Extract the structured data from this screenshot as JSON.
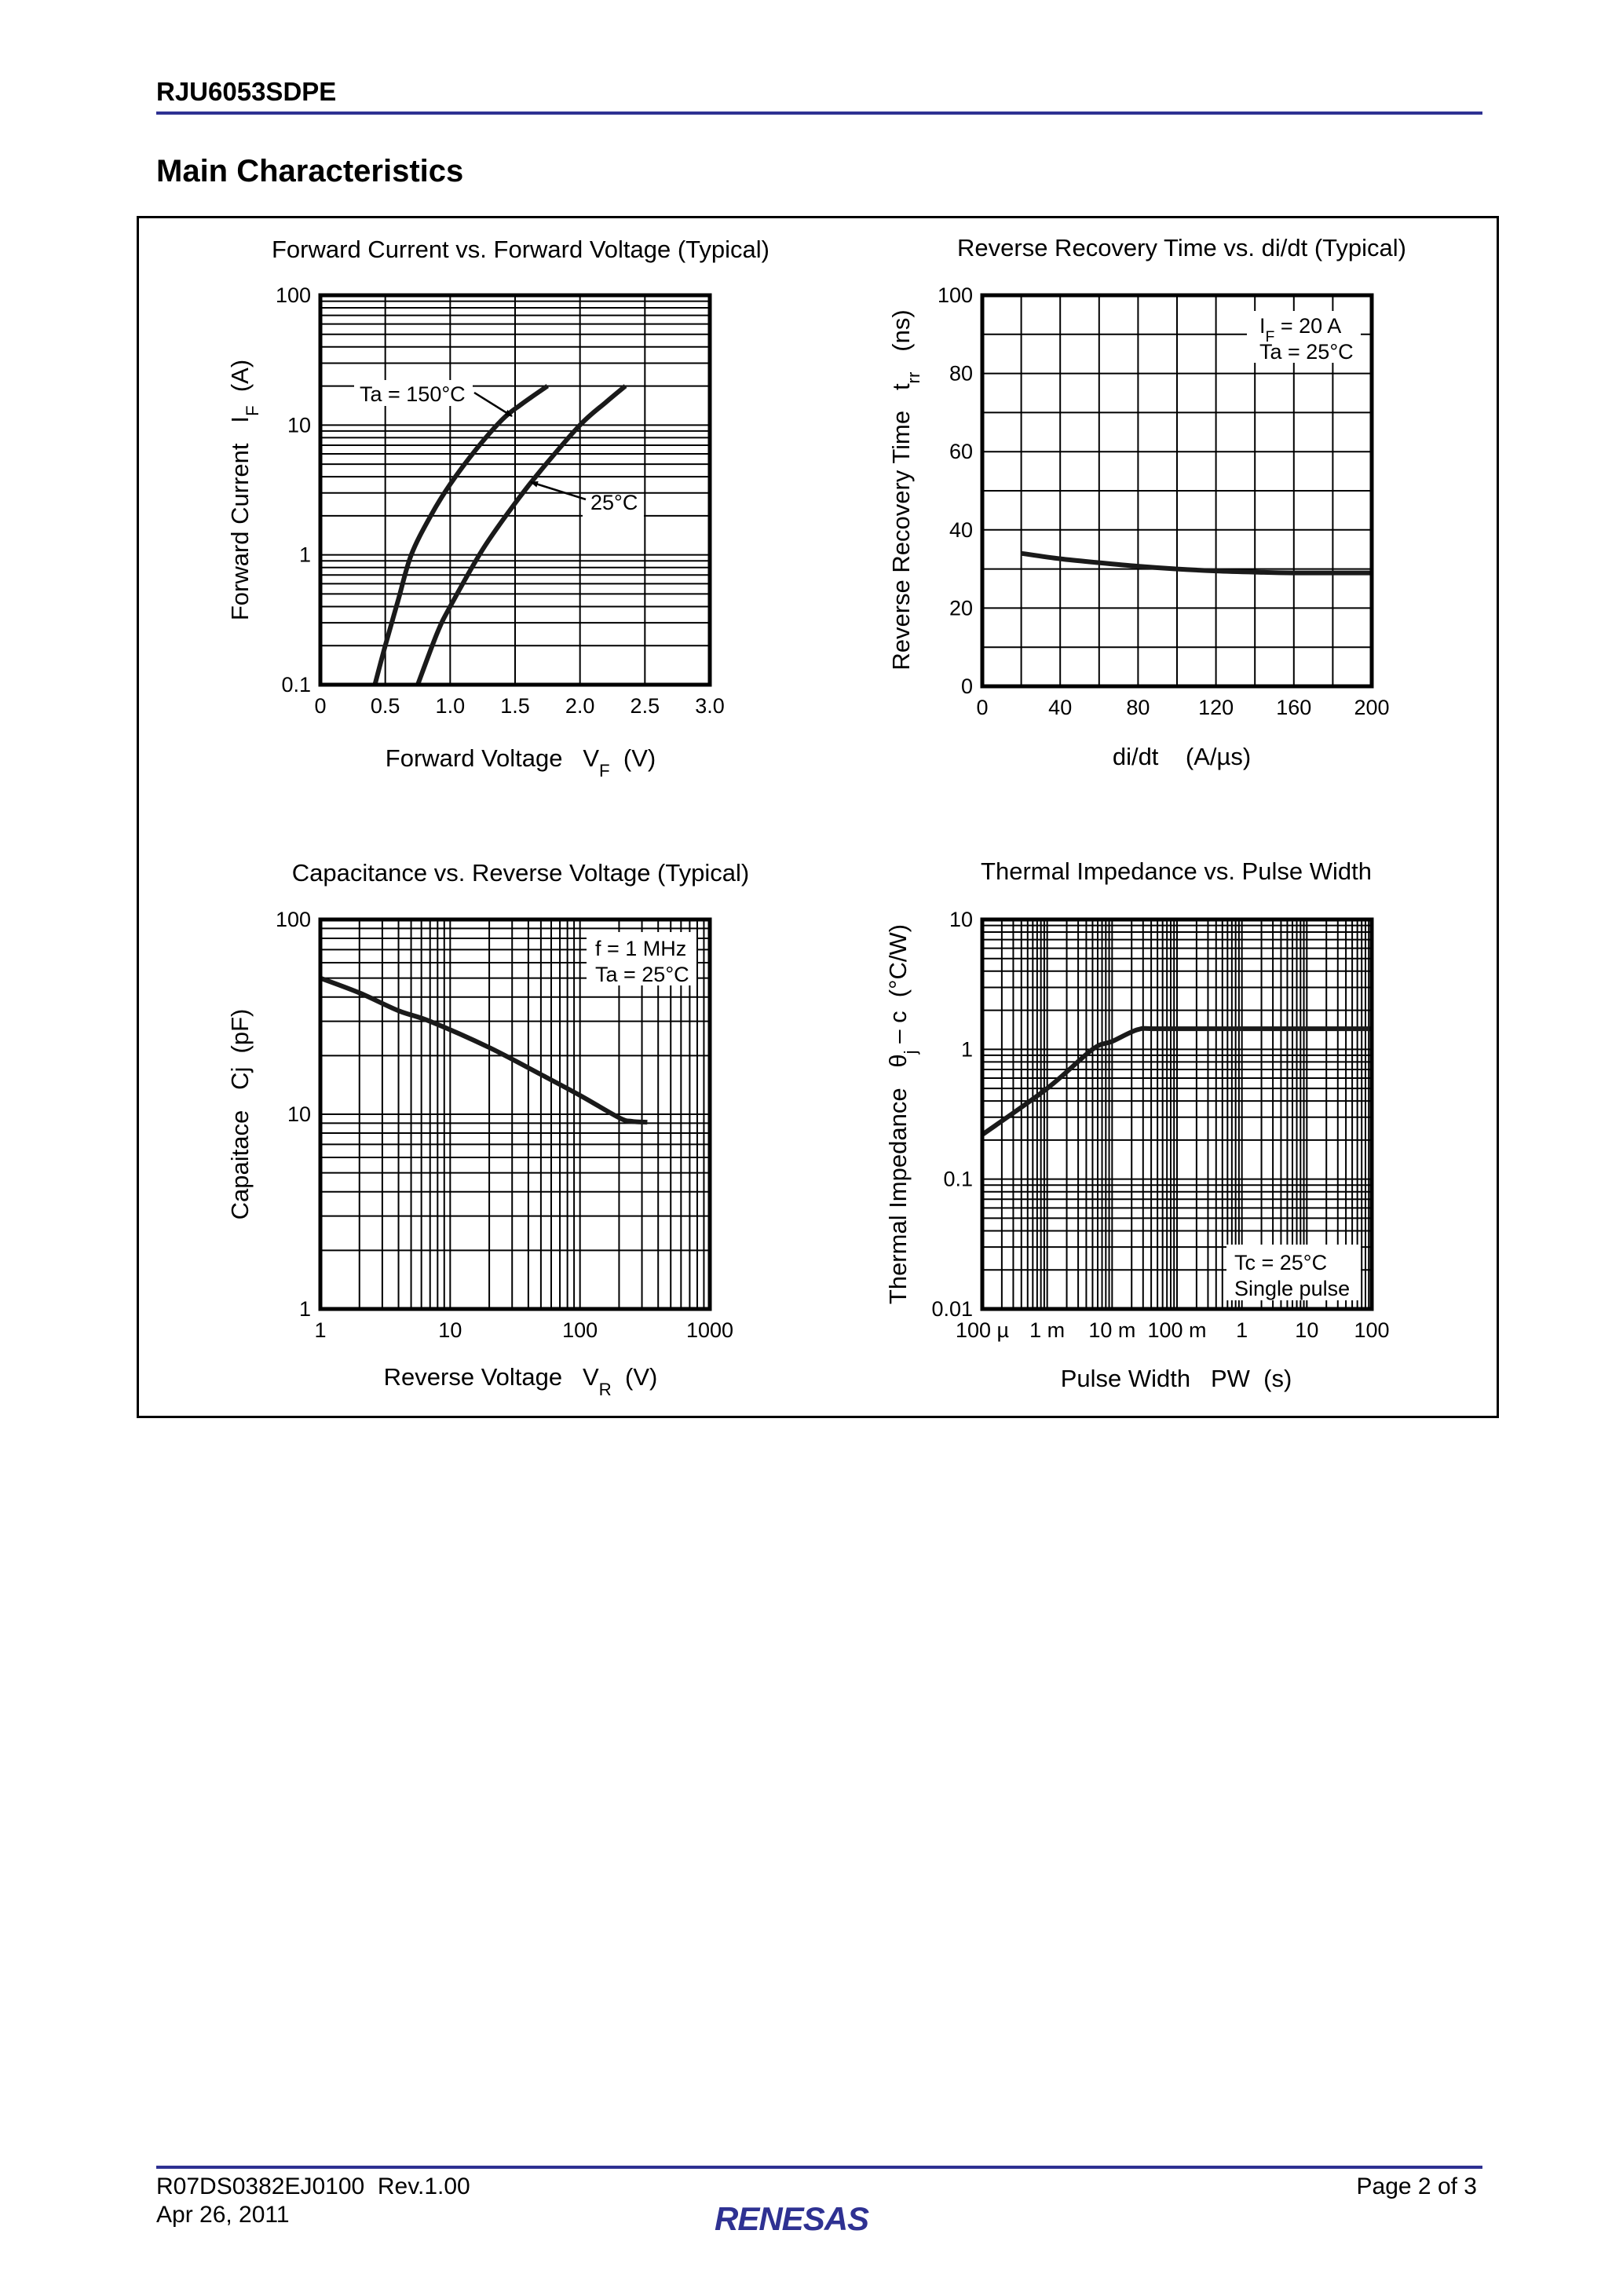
{
  "header": {
    "doc_title": "RJU6053SDPE",
    "section_title": "Main Characteristics"
  },
  "footer": {
    "doc_number": "R07DS0382EJ0100  Rev.1.00",
    "date": "Apr 26, 2011",
    "page": "Page 2 of 3",
    "logo_text": "RENESAS",
    "accent_color": "#2e3192"
  },
  "chart_data": [
    {
      "type": "line",
      "title": "Forward Current vs. Forward Voltage (Typical)",
      "xlabel": [
        {
          "t": "Forward Voltage   V"
        },
        {
          "t": "F",
          "sub": true
        },
        {
          "t": "  (V)"
        }
      ],
      "ylabel": [
        {
          "t": "Forward Current   I"
        },
        {
          "t": "F",
          "sub": true
        },
        {
          "t": "  (A)"
        }
      ],
      "xscale": "linear",
      "yscale": "log",
      "xlim": [
        0,
        3
      ],
      "ylim": [
        0.1,
        100
      ],
      "x_grid_step": 0.5,
      "grid": true,
      "x_ticks": [
        {
          "v": 0,
          "label": "0"
        },
        {
          "v": 0.5,
          "label": "0.5"
        },
        {
          "v": 1,
          "label": "1.0"
        },
        {
          "v": 1.5,
          "label": "1.5"
        },
        {
          "v": 2,
          "label": "2.0"
        },
        {
          "v": 2.5,
          "label": "2.5"
        },
        {
          "v": 3,
          "label": "3.0"
        }
      ],
      "y_ticks": [
        {
          "v": 0.1,
          "label": "0.1"
        },
        {
          "v": 1,
          "label": "1"
        },
        {
          "v": 10,
          "label": "10"
        },
        {
          "v": 100,
          "label": "100"
        }
      ],
      "series": [
        {
          "name": "Ta = 150°C",
          "points": [
            [
              0.42,
              0.1
            ],
            [
              0.5,
              0.2
            ],
            [
              0.6,
              0.45
            ],
            [
              0.7,
              1.0
            ],
            [
              0.85,
              2.0
            ],
            [
              1.0,
              3.5
            ],
            [
              1.2,
              6.5
            ],
            [
              1.4,
              11
            ],
            [
              1.55,
              14.5
            ],
            [
              1.75,
              20
            ]
          ]
        },
        {
          "name": "25°C",
          "points": [
            [
              0.75,
              0.1
            ],
            [
              0.9,
              0.25
            ],
            [
              1.0,
              0.4
            ],
            [
              1.25,
              1.1
            ],
            [
              1.5,
              2.5
            ],
            [
              1.7,
              4.5
            ],
            [
              2.0,
              10
            ],
            [
              2.2,
              15
            ],
            [
              2.35,
              20
            ]
          ]
        }
      ],
      "conditions": []
    },
    {
      "type": "line",
      "title": "Reverse Recovery Time vs. di/dt (Typical)",
      "xlabel": [
        {
          "t": "di/dt    (A/µs)"
        }
      ],
      "ylabel": [
        {
          "t": "Reverse Recovery Time   t"
        },
        {
          "t": "rr",
          "sub": true
        },
        {
          "t": "   (ns)"
        }
      ],
      "xscale": "linear",
      "yscale": "linear",
      "xlim": [
        0,
        200
      ],
      "ylim": [
        0,
        100
      ],
      "x_grid_step": 20,
      "y_grid_step": 10,
      "grid": true,
      "x_ticks": [
        {
          "v": 0,
          "label": "0"
        },
        {
          "v": 40,
          "label": "40"
        },
        {
          "v": 80,
          "label": "80"
        },
        {
          "v": 120,
          "label": "120"
        },
        {
          "v": 160,
          "label": "160"
        },
        {
          "v": 200,
          "label": "200"
        }
      ],
      "y_ticks": [
        {
          "v": 0,
          "label": "0"
        },
        {
          "v": 20,
          "label": "20"
        },
        {
          "v": 40,
          "label": "40"
        },
        {
          "v": 60,
          "label": "60"
        },
        {
          "v": 80,
          "label": "80"
        },
        {
          "v": 100,
          "label": "100"
        }
      ],
      "series": [
        {
          "points": [
            [
              20,
              34
            ],
            [
              40,
              32.6
            ],
            [
              60,
              31.6
            ],
            [
              80,
              30.7
            ],
            [
              100,
              30.0
            ],
            [
              120,
              29.5
            ],
            [
              140,
              29.2
            ],
            [
              160,
              29.0
            ],
            [
              200,
              29.0
            ]
          ]
        }
      ],
      "conditions": [
        [
          {
            "t": "I"
          },
          {
            "t": "F",
            "sub": true
          },
          {
            "t": " = 20 A"
          }
        ],
        [
          {
            "t": "Ta = 25°C"
          }
        ]
      ]
    },
    {
      "type": "line",
      "title": "Capacitance vs. Reverse Voltage (Typical)",
      "xlabel": [
        {
          "t": "Reverse Voltage   V"
        },
        {
          "t": "R",
          "sub": true
        },
        {
          "t": "  (V)"
        }
      ],
      "ylabel": [
        {
          "t": "Capaitace   Cj  (pF)"
        }
      ],
      "xscale": "log",
      "yscale": "log",
      "xlim": [
        1,
        1000
      ],
      "ylim": [
        1,
        100
      ],
      "grid": true,
      "x_ticks": [
        {
          "v": 1,
          "label": "1"
        },
        {
          "v": 10,
          "label": "10"
        },
        {
          "v": 100,
          "label": "100"
        },
        {
          "v": 1000,
          "label": "1000"
        }
      ],
      "y_ticks": [
        {
          "v": 1,
          "label": "1"
        },
        {
          "v": 10,
          "label": "10"
        },
        {
          "v": 100,
          "label": "100"
        }
      ],
      "series": [
        {
          "points": [
            [
              1,
              50
            ],
            [
              2,
              42
            ],
            [
              4,
              34
            ],
            [
              7,
              30
            ],
            [
              20,
              22
            ],
            [
              50,
              16
            ],
            [
              100,
              12.5
            ],
            [
              200,
              9.6
            ],
            [
              250,
              9.2
            ],
            [
              330,
              9.1
            ]
          ]
        }
      ],
      "conditions": [
        [
          {
            "t": "f = 1 MHz"
          }
        ],
        [
          {
            "t": "Ta = 25°C"
          }
        ]
      ]
    },
    {
      "type": "line",
      "title": "Thermal Impedance vs. Pulse Width",
      "xlabel": [
        {
          "t": "Pulse Width   PW  (s)"
        }
      ],
      "ylabel": [
        {
          "t": "Thermal Impedance   θ"
        },
        {
          "t": "j",
          "sub": true
        },
        {
          "t": " – c  (°C/W)"
        }
      ],
      "xscale": "log",
      "yscale": "log",
      "xlim": [
        0.0001,
        100
      ],
      "ylim": [
        0.01,
        10
      ],
      "grid": true,
      "x_ticks": [
        {
          "v": 0.0001,
          "label": "100 µ"
        },
        {
          "v": 0.001,
          "label": "1 m"
        },
        {
          "v": 0.01,
          "label": "10 m"
        },
        {
          "v": 0.1,
          "label": "100 m"
        },
        {
          "v": 1,
          "label": "1"
        },
        {
          "v": 10,
          "label": "10"
        },
        {
          "v": 100,
          "label": "100"
        }
      ],
      "y_ticks": [
        {
          "v": 0.01,
          "label": "0.01"
        },
        {
          "v": 0.1,
          "label": "0.1"
        },
        {
          "v": 1,
          "label": "1"
        },
        {
          "v": 10,
          "label": "10"
        }
      ],
      "series": [
        {
          "points": [
            [
              0.0001,
              0.22
            ],
            [
              0.001,
              0.5
            ],
            [
              0.005,
              1.0
            ],
            [
              0.01,
              1.15
            ],
            [
              0.025,
              1.42
            ],
            [
              0.05,
              1.44
            ],
            [
              1,
              1.44
            ],
            [
              100,
              1.44
            ]
          ]
        }
      ],
      "conditions": [
        [
          {
            "t": "Tc = 25°C"
          }
        ],
        [
          {
            "t": "Single pulse"
          }
        ]
      ]
    }
  ]
}
